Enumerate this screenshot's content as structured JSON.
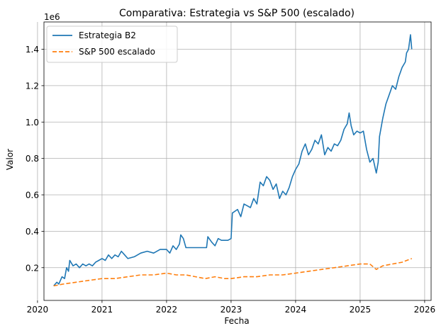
{
  "chart_data": {
    "type": "line",
    "title": "Comparativa: Estrategia vs S&P 500 (escalado)",
    "xlabel": "Fecha",
    "ylabel": "Valor",
    "y_offset_label": "1e6",
    "xlim": [
      2020.1,
      2026.1
    ],
    "ylim": [
      0.02,
      1.55
    ],
    "grid": true,
    "legend_position": "top-left",
    "x_ticks": [
      2020,
      2021,
      2022,
      2023,
      2024,
      2025,
      2026
    ],
    "x_tick_labels": [
      "2020",
      "2021",
      "2022",
      "2023",
      "2024",
      "2025",
      "2026"
    ],
    "y_ticks": [
      0.2,
      0.4,
      0.6,
      0.8,
      1.0,
      1.2,
      1.4
    ],
    "y_tick_labels": [
      "0.2",
      "0.4",
      "0.6",
      "0.8",
      "1.0",
      "1.2",
      "1.4"
    ],
    "series": [
      {
        "name": "Estrategia B2",
        "color": "#1f77b4",
        "style": "solid",
        "points": [
          [
            2020.25,
            0.1
          ],
          [
            2020.3,
            0.12
          ],
          [
            2020.33,
            0.11
          ],
          [
            2020.38,
            0.15
          ],
          [
            2020.42,
            0.14
          ],
          [
            2020.45,
            0.2
          ],
          [
            2020.48,
            0.18
          ],
          [
            2020.5,
            0.24
          ],
          [
            2020.55,
            0.21
          ],
          [
            2020.6,
            0.22
          ],
          [
            2020.65,
            0.2
          ],
          [
            2020.7,
            0.22
          ],
          [
            2020.75,
            0.21
          ],
          [
            2020.8,
            0.22
          ],
          [
            2020.85,
            0.21
          ],
          [
            2020.9,
            0.23
          ],
          [
            2020.95,
            0.24
          ],
          [
            2021.0,
            0.25
          ],
          [
            2021.05,
            0.24
          ],
          [
            2021.1,
            0.27
          ],
          [
            2021.15,
            0.25
          ],
          [
            2021.2,
            0.27
          ],
          [
            2021.25,
            0.26
          ],
          [
            2021.3,
            0.29
          ],
          [
            2021.35,
            0.27
          ],
          [
            2021.4,
            0.25
          ],
          [
            2021.5,
            0.26
          ],
          [
            2021.6,
            0.28
          ],
          [
            2021.7,
            0.29
          ],
          [
            2021.8,
            0.28
          ],
          [
            2021.9,
            0.3
          ],
          [
            2022.0,
            0.3
          ],
          [
            2022.05,
            0.28
          ],
          [
            2022.1,
            0.32
          ],
          [
            2022.15,
            0.3
          ],
          [
            2022.2,
            0.33
          ],
          [
            2022.22,
            0.38
          ],
          [
            2022.26,
            0.36
          ],
          [
            2022.3,
            0.31
          ],
          [
            2022.45,
            0.31
          ],
          [
            2022.55,
            0.31
          ],
          [
            2022.62,
            0.31
          ],
          [
            2022.64,
            0.37
          ],
          [
            2022.7,
            0.34
          ],
          [
            2022.75,
            0.32
          ],
          [
            2022.8,
            0.36
          ],
          [
            2022.85,
            0.35
          ],
          [
            2022.95,
            0.35
          ],
          [
            2023.0,
            0.36
          ],
          [
            2023.02,
            0.5
          ],
          [
            2023.1,
            0.52
          ],
          [
            2023.15,
            0.48
          ],
          [
            2023.2,
            0.55
          ],
          [
            2023.25,
            0.54
          ],
          [
            2023.3,
            0.53
          ],
          [
            2023.35,
            0.58
          ],
          [
            2023.4,
            0.55
          ],
          [
            2023.45,
            0.67
          ],
          [
            2023.5,
            0.65
          ],
          [
            2023.55,
            0.7
          ],
          [
            2023.6,
            0.68
          ],
          [
            2023.65,
            0.63
          ],
          [
            2023.7,
            0.66
          ],
          [
            2023.75,
            0.58
          ],
          [
            2023.8,
            0.62
          ],
          [
            2023.85,
            0.6
          ],
          [
            2023.9,
            0.64
          ],
          [
            2023.95,
            0.7
          ],
          [
            2024.0,
            0.74
          ],
          [
            2024.05,
            0.77
          ],
          [
            2024.1,
            0.84
          ],
          [
            2024.15,
            0.88
          ],
          [
            2024.2,
            0.82
          ],
          [
            2024.25,
            0.85
          ],
          [
            2024.3,
            0.9
          ],
          [
            2024.35,
            0.88
          ],
          [
            2024.4,
            0.93
          ],
          [
            2024.45,
            0.82
          ],
          [
            2024.5,
            0.86
          ],
          [
            2024.55,
            0.84
          ],
          [
            2024.6,
            0.88
          ],
          [
            2024.65,
            0.87
          ],
          [
            2024.7,
            0.9
          ],
          [
            2024.75,
            0.96
          ],
          [
            2024.8,
            0.99
          ],
          [
            2024.83,
            1.05
          ],
          [
            2024.86,
            0.98
          ],
          [
            2024.9,
            0.93
          ],
          [
            2024.95,
            0.95
          ],
          [
            2025.0,
            0.94
          ],
          [
            2025.05,
            0.95
          ],
          [
            2025.1,
            0.85
          ],
          [
            2025.15,
            0.78
          ],
          [
            2025.2,
            0.8
          ],
          [
            2025.25,
            0.72
          ],
          [
            2025.28,
            0.78
          ],
          [
            2025.3,
            0.92
          ],
          [
            2025.35,
            1.02
          ],
          [
            2025.4,
            1.1
          ],
          [
            2025.45,
            1.15
          ],
          [
            2025.5,
            1.2
          ],
          [
            2025.55,
            1.18
          ],
          [
            2025.6,
            1.25
          ],
          [
            2025.65,
            1.3
          ],
          [
            2025.7,
            1.33
          ],
          [
            2025.72,
            1.38
          ],
          [
            2025.75,
            1.4
          ],
          [
            2025.78,
            1.48
          ],
          [
            2025.8,
            1.4
          ]
        ]
      },
      {
        "name": "S&P 500 escalado",
        "color": "#ff7f0e",
        "style": "dashed",
        "points": [
          [
            2020.25,
            0.1
          ],
          [
            2020.4,
            0.11
          ],
          [
            2020.6,
            0.12
          ],
          [
            2020.8,
            0.13
          ],
          [
            2021.0,
            0.14
          ],
          [
            2021.2,
            0.14
          ],
          [
            2021.4,
            0.15
          ],
          [
            2021.6,
            0.16
          ],
          [
            2021.8,
            0.16
          ],
          [
            2022.0,
            0.17
          ],
          [
            2022.15,
            0.16
          ],
          [
            2022.3,
            0.16
          ],
          [
            2022.45,
            0.15
          ],
          [
            2022.6,
            0.14
          ],
          [
            2022.75,
            0.15
          ],
          [
            2022.9,
            0.14
          ],
          [
            2023.0,
            0.14
          ],
          [
            2023.2,
            0.15
          ],
          [
            2023.4,
            0.15
          ],
          [
            2023.6,
            0.16
          ],
          [
            2023.8,
            0.16
          ],
          [
            2024.0,
            0.17
          ],
          [
            2024.2,
            0.18
          ],
          [
            2024.4,
            0.19
          ],
          [
            2024.6,
            0.2
          ],
          [
            2024.8,
            0.21
          ],
          [
            2025.0,
            0.22
          ],
          [
            2025.15,
            0.22
          ],
          [
            2025.25,
            0.19
          ],
          [
            2025.35,
            0.21
          ],
          [
            2025.5,
            0.22
          ],
          [
            2025.65,
            0.23
          ],
          [
            2025.8,
            0.25
          ]
        ]
      }
    ]
  }
}
